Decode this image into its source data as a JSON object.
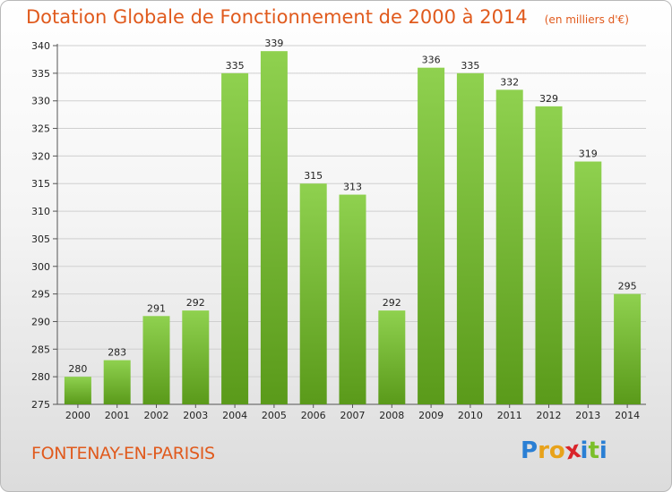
{
  "header": {
    "title": "Dotation Globale de Fonctionnement de 2000 à 2014",
    "unit": "(en milliers d'€)"
  },
  "footer": {
    "commune": "FONTENAY-EN-PARISIS",
    "logo_letters": [
      "P",
      "r",
      "o",
      "x",
      "i",
      "t",
      "i"
    ]
  },
  "colors": {
    "title": "#e05a1d",
    "bar_top": "#8fd14f",
    "bar_bottom": "#5a9a1a",
    "grid": "#cfcfcf",
    "logo": [
      "#2a7fd4",
      "#e8a21a",
      "#e8a21a",
      "#d9242a",
      "#2a7fd4",
      "#7bbf2a",
      "#2a7fd4"
    ]
  },
  "chart_data": {
    "type": "bar",
    "title": "Dotation Globale de Fonctionnement de 2000 à 2014",
    "subtitle": "(en milliers d'€)",
    "categories": [
      "2000",
      "2001",
      "2002",
      "2003",
      "2004",
      "2005",
      "2006",
      "2007",
      "2008",
      "2009",
      "2010",
      "2011",
      "2012",
      "2013",
      "2014"
    ],
    "values": [
      280,
      283,
      291,
      292,
      335,
      339,
      315,
      313,
      292,
      336,
      335,
      332,
      329,
      319,
      295
    ],
    "ylim": [
      275,
      340
    ],
    "yticks": [
      275,
      280,
      285,
      290,
      295,
      300,
      305,
      310,
      315,
      320,
      325,
      330,
      335,
      340
    ],
    "grid": true,
    "legend": "none"
  }
}
